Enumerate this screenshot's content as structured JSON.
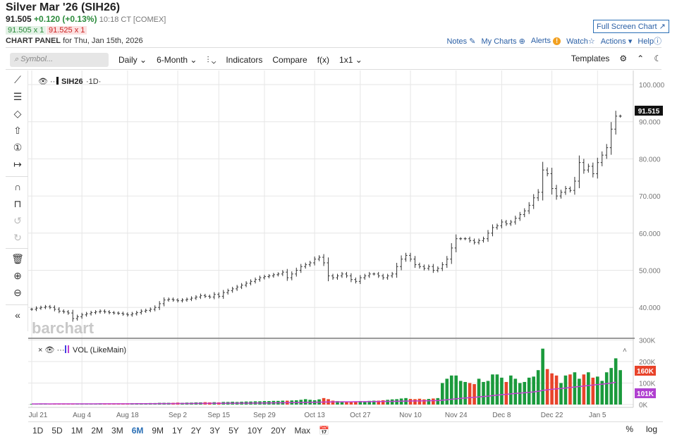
{
  "header": {
    "title": "Silver Mar '26 (SIH26)",
    "last": "91.505",
    "change": "+0.120 (+0.13%)",
    "time": "10:18 CT [COMEX]",
    "bid": "91.505 x 1",
    "ask": "91.525 x 1",
    "panel_label": "CHART PANEL",
    "panel_date": "for Thu, Jan 15th, 2026"
  },
  "links": {
    "full_screen": "Full Screen Chart ↗",
    "notes": "Notes",
    "my_charts": "My Charts",
    "alerts": "Alerts",
    "watch": "Watch",
    "actions": "Actions",
    "help": "Help"
  },
  "toolbar": {
    "symbol_placeholder": "Symbol...",
    "interval": "Daily",
    "range": "6-Month",
    "indicators": "Indicators",
    "compare": "Compare",
    "fx": "f(x)",
    "layout": "1x1",
    "templates": "Templates"
  },
  "price_pane": {
    "legend": "SIH26",
    "interval": "·1D·",
    "last_label": "91.515",
    "watermark": "barchart"
  },
  "volume_pane": {
    "legend": "VOL (LikeMain)",
    "vol_label": "160K",
    "ma_label": "101K"
  },
  "ranges": [
    "1D",
    "5D",
    "1M",
    "2M",
    "3M",
    "6M",
    "9M",
    "1Y",
    "2Y",
    "3Y",
    "5Y",
    "10Y",
    "20Y",
    "Max"
  ],
  "active_range": "6M",
  "scale_buttons": {
    "pct": "%",
    "log": "log"
  },
  "colors": {
    "up": "#1a9a3c",
    "down": "#e8432a",
    "ma": "#c040d0",
    "price": "#333333"
  },
  "chart_data": {
    "type": "bar",
    "price_axis": {
      "ticks": [
        "100.000",
        "90.000",
        "80.000",
        "70.000",
        "60.000",
        "50.000",
        "40.000"
      ],
      "values": [
        100,
        90,
        80,
        70,
        60,
        50,
        40
      ],
      "range": [
        35,
        103
      ]
    },
    "volume_axis": {
      "ticks": [
        "300K",
        "200K",
        "100K",
        "0K"
      ],
      "values": [
        300,
        200,
        100,
        0
      ]
    },
    "x_ticks": [
      {
        "label": "Jul 21",
        "i": 0
      },
      {
        "label": "Aug 4",
        "i": 11
      },
      {
        "label": "Aug 18",
        "i": 21
      },
      {
        "label": "Sep 2",
        "i": 32
      },
      {
        "label": "Sep 15",
        "i": 41
      },
      {
        "label": "Sep 29",
        "i": 51
      },
      {
        "label": "Oct 13",
        "i": 62
      },
      {
        "label": "Oct 27",
        "i": 72
      },
      {
        "label": "Nov 10",
        "i": 83
      },
      {
        "label": "Nov 24",
        "i": 93
      },
      {
        "label": "Dec 8",
        "i": 103
      },
      {
        "label": "Dec 22",
        "i": 114
      },
      {
        "label": "Jan 5",
        "i": 124
      }
    ],
    "closes": [
      39.5,
      39.8,
      40,
      40.2,
      40,
      39.5,
      39,
      38.8,
      38.5,
      37.0,
      37.5,
      38,
      38.3,
      38.6,
      38.8,
      39,
      38.8,
      38.6,
      38.5,
      38.4,
      38.2,
      38,
      38.3,
      38.6,
      39,
      39.2,
      39.5,
      40,
      41,
      42,
      42.2,
      42,
      41.8,
      42,
      42.2,
      42.5,
      42.8,
      43.2,
      43,
      42.8,
      43.5,
      43,
      44,
      44.5,
      45,
      45.5,
      46,
      46.5,
      47,
      47.5,
      48,
      48.3,
      48.5,
      48.8,
      49,
      49.5,
      48,
      49,
      50,
      51,
      51.5,
      52,
      53,
      53.5,
      52,
      48.5,
      48,
      48.5,
      49,
      48.5,
      47.5,
      47,
      48,
      48.5,
      49,
      49,
      48.5,
      48,
      48.5,
      49,
      51,
      53,
      54,
      53,
      51.5,
      51,
      50.5,
      51,
      50,
      50.5,
      51.5,
      53,
      56,
      58.5,
      58.5,
      58.5,
      58,
      57.5,
      58,
      58.5,
      60,
      61.5,
      62,
      63,
      62.5,
      63,
      64,
      65,
      66,
      67.5,
      69.5,
      71,
      77,
      76,
      72,
      70,
      71,
      72,
      71.5,
      74,
      79,
      77,
      78,
      76,
      79,
      81,
      83,
      88,
      91.5,
      91.5
    ],
    "volumes_k": [
      3,
      3,
      4,
      3,
      3,
      4,
      4,
      5,
      4,
      3,
      4,
      4,
      3,
      4,
      4,
      5,
      4,
      4,
      5,
      5,
      5,
      5,
      6,
      5,
      6,
      6,
      7,
      7,
      8,
      8,
      8,
      8,
      9,
      8,
      9,
      9,
      10,
      10,
      11,
      10,
      11,
      10,
      12,
      12,
      13,
      12,
      13,
      14,
      14,
      15,
      15,
      16,
      16,
      17,
      17,
      18,
      18,
      19,
      20,
      22,
      25,
      22,
      20,
      24,
      30,
      25,
      18,
      16,
      15,
      14,
      14,
      15,
      16,
      15,
      17,
      18,
      18,
      20,
      22,
      24,
      25,
      28,
      30,
      26,
      25,
      27,
      24,
      26,
      28,
      30,
      100,
      120,
      135,
      135,
      110,
      105,
      100,
      95,
      120,
      105,
      110,
      140,
      140,
      125,
      105,
      135,
      120,
      100,
      105,
      125,
      130,
      160,
      260,
      165,
      145,
      135,
      100,
      135,
      140,
      150,
      120,
      140,
      150,
      125,
      130,
      110,
      150,
      170,
      215,
      160
    ]
  }
}
